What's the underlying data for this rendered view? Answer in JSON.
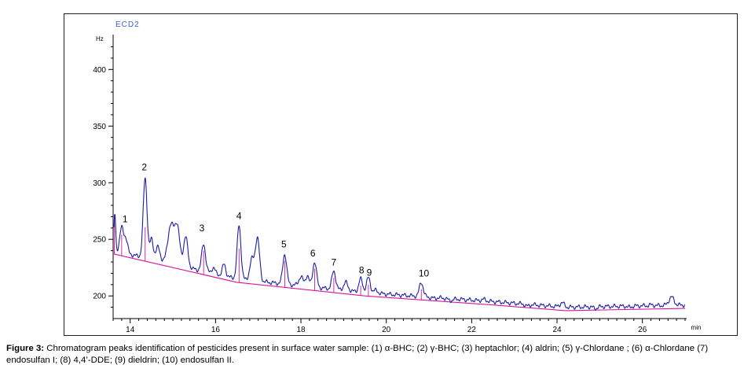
{
  "chart_data": {
    "type": "line",
    "detector": "ECD2",
    "ylabel": "Hz",
    "xunit": "min",
    "xlim": [
      13.6,
      27.0
    ],
    "ylim": [
      180,
      428
    ],
    "x_ticks": [
      14,
      16,
      18,
      20,
      22,
      24,
      26
    ],
    "y_ticks": [
      200,
      250,
      300,
      350,
      400
    ],
    "grid": false,
    "colors": {
      "trace": "#1c1ca8",
      "baseline": "#d6159e",
      "axis": "#000000"
    },
    "baseline": [
      [
        13.62,
        237
      ],
      [
        16.5,
        212
      ],
      [
        19.5,
        200
      ],
      [
        22.5,
        192
      ],
      [
        24.2,
        187
      ],
      [
        27.0,
        189
      ]
    ],
    "peaks": [
      {
        "label": "1",
        "rt": 13.8,
        "height": 260,
        "label_pos": [
          13.88,
          265
        ]
      },
      {
        "label": "2",
        "rt": 14.35,
        "height": 304,
        "label_pos": [
          14.33,
          311
        ]
      },
      {
        "label": "3",
        "rt": 15.72,
        "height": 246,
        "label_pos": [
          15.68,
          257
        ]
      },
      {
        "label": "4",
        "rt": 16.55,
        "height": 262,
        "label_pos": [
          16.55,
          268
        ]
      },
      {
        "label": "5",
        "rt": 17.62,
        "height": 237,
        "label_pos": [
          17.6,
          243
        ]
      },
      {
        "label": "6",
        "rt": 18.32,
        "height": 230,
        "label_pos": [
          18.28,
          235
        ]
      },
      {
        "label": "7",
        "rt": 18.77,
        "height": 222,
        "label_pos": [
          18.77,
          227
        ]
      },
      {
        "label": "8",
        "rt": 19.4,
        "height": 215,
        "label_pos": [
          19.42,
          220
        ]
      },
      {
        "label": "9",
        "rt": 19.58,
        "height": 216,
        "label_pos": [
          19.6,
          218
        ]
      },
      {
        "label": "10",
        "rt": 20.82,
        "height": 212,
        "label_pos": [
          20.88,
          217
        ]
      }
    ],
    "minor_peaks": [
      {
        "rt": 13.64,
        "height": 272,
        "w": 0.02
      },
      {
        "rt": 13.9,
        "height": 250,
        "w": 0.04
      },
      {
        "rt": 14.5,
        "height": 250,
        "w": 0.04
      },
      {
        "rt": 14.65,
        "height": 243,
        "w": 0.05
      },
      {
        "rt": 14.95,
        "height": 262,
        "w": 0.07
      },
      {
        "rt": 15.1,
        "height": 261,
        "w": 0.06
      },
      {
        "rt": 15.3,
        "height": 252,
        "w": 0.05
      },
      {
        "rt": 15.95,
        "height": 225,
        "w": 0.04
      },
      {
        "rt": 16.2,
        "height": 228,
        "w": 0.04
      },
      {
        "rt": 16.85,
        "height": 232,
        "w": 0.05
      },
      {
        "rt": 16.98,
        "height": 251,
        "w": 0.05
      },
      {
        "rt": 18.0,
        "height": 217,
        "w": 0.05
      },
      {
        "rt": 18.15,
        "height": 218,
        "w": 0.04
      },
      {
        "rt": 19.05,
        "height": 212,
        "w": 0.05
      },
      {
        "rt": 19.75,
        "height": 205,
        "w": 0.05
      },
      {
        "rt": 21.1,
        "height": 198,
        "w": 0.06
      },
      {
        "rt": 21.5,
        "height": 196,
        "w": 0.06
      },
      {
        "rt": 22.28,
        "height": 197,
        "w": 0.05
      },
      {
        "rt": 23.3,
        "height": 191,
        "w": 0.05
      },
      {
        "rt": 24.12,
        "height": 194,
        "w": 0.05
      },
      {
        "rt": 24.9,
        "height": 189,
        "w": 0.05
      },
      {
        "rt": 25.7,
        "height": 190,
        "w": 0.05
      },
      {
        "rt": 26.2,
        "height": 192,
        "w": 0.05
      },
      {
        "rt": 26.68,
        "height": 199,
        "w": 0.06
      }
    ]
  },
  "caption": {
    "prefix": "Figure 3:",
    "text": " Chromatogram peaks identification of pesticides present in surface water sample: (1) α-BHC; (2) γ-BHC; (3) heptachlor; (4) aldrin; (5) γ-Chlordane ; (6) α-Chlordane (7) endosulfan I; (8) 4,4’-DDE; (9) dieldrin; (10) endosulfan II."
  }
}
